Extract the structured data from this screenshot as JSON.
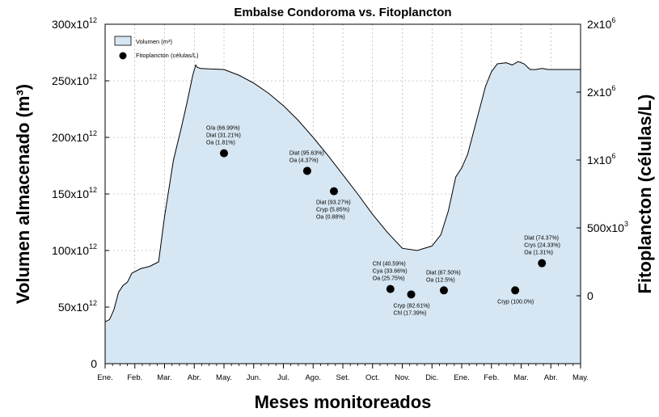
{
  "chart_data": {
    "type": "area",
    "title": "Embalse Condoroma vs. Fitoplancton",
    "xlabel": "Meses monitoreados",
    "ylabel_left": "Volumen almacenado (m³)",
    "ylabel_right": "Fitoplancton (células/L)",
    "x_ticks": [
      "Ene.",
      "Feb.",
      "Mar.",
      "Abr.",
      "May.",
      "Jun.",
      "Jul.",
      "Ago.",
      "Set.",
      "Oct.",
      "Nov.",
      "Dic.",
      "Ene.",
      "Feb.",
      "Mar.",
      "Abr.",
      "May."
    ],
    "xlim": [
      0,
      16
    ],
    "left_axis": {
      "ylim": [
        0,
        300000000000000.0
      ],
      "ticks": [
        {
          "mantissa": "0",
          "exp": ""
        },
        {
          "mantissa": "50x10",
          "exp": "12"
        },
        {
          "mantissa": "100x10",
          "exp": "12"
        },
        {
          "mantissa": "150x10",
          "exp": "12"
        },
        {
          "mantissa": "200x10",
          "exp": "12"
        },
        {
          "mantissa": "250x10",
          "exp": "12"
        },
        {
          "mantissa": "300x10",
          "exp": "12"
        }
      ]
    },
    "right_axis": {
      "ylim": [
        -500000,
        2000000
      ],
      "ticks": [
        {
          "value": 0,
          "mantissa": "0",
          "exp": ""
        },
        {
          "value": 500000,
          "mantissa": "500x10",
          "exp": "3"
        },
        {
          "value": 1000000,
          "mantissa": "1x10",
          "exp": "6"
        },
        {
          "value": 1500000,
          "mantissa": "2x10",
          "exp": "6"
        },
        {
          "value": 2000000,
          "mantissa": "2x10",
          "exp": "6"
        }
      ]
    },
    "grid": true,
    "legend_position": "top-left",
    "series": [
      {
        "name": "Volumen (m³)",
        "kind": "area",
        "color": "#d6e6f2",
        "x": [
          0,
          0.15,
          0.3,
          0.45,
          0.6,
          0.75,
          0.9,
          1.05,
          1.2,
          1.5,
          1.8,
          2.0,
          2.3,
          2.55,
          2.75,
          2.95,
          3.05,
          3.1,
          3.2,
          3.5,
          4.0,
          4.5,
          5.0,
          5.5,
          6.0,
          6.5,
          7.0,
          7.5,
          8.0,
          8.5,
          9.0,
          9.5,
          10.0,
          10.5,
          11.0,
          11.3,
          11.55,
          11.8,
          12.0,
          12.2,
          12.5,
          12.8,
          13.0,
          13.2,
          13.5,
          13.7,
          13.9,
          14.1,
          14.3,
          14.5,
          14.7,
          14.9,
          15.1,
          15.3,
          15.6,
          16.0
        ],
        "y": [
          37000000000000.0,
          39000000000000.0,
          48000000000000.0,
          63000000000000.0,
          69000000000000.0,
          72000000000000.0,
          80000000000000.0,
          82000000000000.0,
          84000000000000.0,
          86000000000000.0,
          90000000000000.0,
          130000000000000.0,
          180000000000000.0,
          207000000000000.0,
          230000000000000.0,
          255000000000000.0,
          264000000000000.0,
          262000000000000.0,
          261000000000000.0,
          260500000000000.0,
          260000000000000.0,
          255000000000000.0,
          248000000000000.0,
          239000000000000.0,
          228000000000000.0,
          215000000000000.0,
          200000000000000.0,
          184000000000000.0,
          167000000000000.0,
          150000000000000.0,
          132000000000000.0,
          116000000000000.0,
          102000000000000.0,
          100000000000000.0,
          104000000000000.0,
          114000000000000.0,
          135000000000000.0,
          165000000000000.0,
          173000000000000.0,
          185000000000000.0,
          215000000000000.0,
          245000000000000.0,
          258000000000000.0,
          265000000000000.0,
          266000000000000.0,
          264000000000000.0,
          267000000000000.0,
          265000000000000.0,
          260000000000000.0,
          260000000000000.0,
          261000000000000.0,
          260000000000000.0,
          260000000000000.0,
          260000000000000.0,
          260000000000000.0,
          260000000000000.0
        ]
      },
      {
        "name": "Fitoplancton (células/L)",
        "kind": "scatter",
        "color": "#000000",
        "points": [
          {
            "x": 4.0,
            "y": 1050000,
            "labels": [
              "O/a (66.99%)",
              "Diat (31.21%)",
              "Oa (1.81%)"
            ],
            "label_pos": "above"
          },
          {
            "x": 6.8,
            "y": 920000,
            "labels": [
              "Diat (95.63%)",
              "Oa (4.37%)"
            ],
            "label_pos": "above"
          },
          {
            "x": 7.7,
            "y": 770000,
            "labels": [
              "Diat (93.27%)",
              "Cryp (5.85%)",
              "Oa (0.88%)"
            ],
            "label_pos": "below"
          },
          {
            "x": 9.6,
            "y": 50000,
            "labels": [
              "Chl (40.59%)",
              "Cya (33.66%)",
              "Oa (25.75%)"
            ],
            "label_pos": "above"
          },
          {
            "x": 10.3,
            "y": 10000,
            "labels": [
              "Cryp (82.61%)",
              "Chl (17.39%)"
            ],
            "label_pos": "below"
          },
          {
            "x": 11.4,
            "y": 40000,
            "labels": [
              "Diat (87.50%)",
              "Oa (12.5%)"
            ],
            "label_pos": "above"
          },
          {
            "x": 13.8,
            "y": 40000,
            "labels": [
              "Cryp (100.0%)"
            ],
            "label_pos": "below"
          },
          {
            "x": 14.7,
            "y": 240000,
            "labels": [
              "Diat (74.37%)",
              "Crys (24.33%)",
              "Oa (1.31%)"
            ],
            "label_pos": "above"
          }
        ]
      }
    ]
  }
}
